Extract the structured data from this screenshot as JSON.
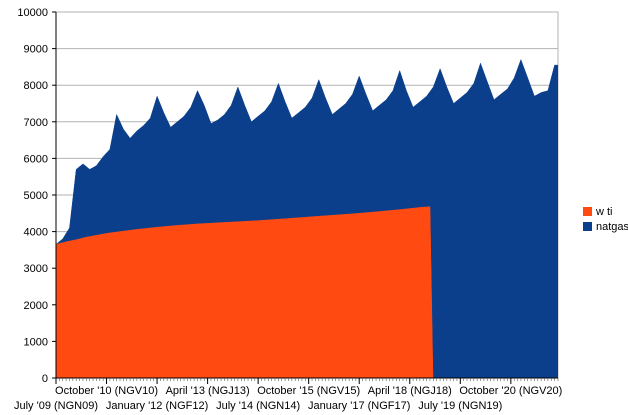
{
  "chart_data": {
    "type": "area",
    "title": "",
    "xlabel": "",
    "ylabel": "",
    "ylim": [
      0,
      10000
    ],
    "yticks": [
      0,
      1000,
      2000,
      3000,
      4000,
      5000,
      6000,
      7000,
      8000,
      9000,
      10000
    ],
    "x_tick_labels": [
      {
        "label": "July '09 (NGN09)",
        "x": "2009-07"
      },
      {
        "label": "October '10 (NGV10)",
        "x": "2010-10"
      },
      {
        "label": "January '12 (NGF12)",
        "x": "2012-01"
      },
      {
        "label": "April '13 (NGJ13)",
        "x": "2013-04"
      },
      {
        "label": "July '14 (NGN14)",
        "x": "2014-07"
      },
      {
        "label": "October '15 (NGV15)",
        "x": "2015-10"
      },
      {
        "label": "January '17 (NGF17)",
        "x": "2017-01"
      },
      {
        "label": "April '18 (NGJ18)",
        "x": "2018-04"
      },
      {
        "label": "July '19 (NGN19)",
        "x": "2019-07"
      },
      {
        "label": "October '20 (NGV20)",
        "x": "2020-10"
      }
    ],
    "grid": true,
    "stacked": false,
    "legend": "right",
    "series": [
      {
        "name": "natgas",
        "color": "#0b3f8c",
        "points": [
          [
            "2009-07",
            3650
          ],
          [
            "2009-09",
            3800
          ],
          [
            "2009-11",
            4100
          ],
          [
            "2010-01",
            5700
          ],
          [
            "2010-03",
            5850
          ],
          [
            "2010-05",
            5700
          ],
          [
            "2010-07",
            5800
          ],
          [
            "2010-09",
            6050
          ],
          [
            "2010-11",
            6250
          ],
          [
            "2011-01",
            7200
          ],
          [
            "2011-03",
            6800
          ],
          [
            "2011-05",
            6550
          ],
          [
            "2011-07",
            6750
          ],
          [
            "2011-09",
            6900
          ],
          [
            "2011-11",
            7100
          ],
          [
            "2012-01",
            7700
          ],
          [
            "2012-03",
            7250
          ],
          [
            "2012-05",
            6850
          ],
          [
            "2012-07",
            7000
          ],
          [
            "2012-09",
            7150
          ],
          [
            "2012-11",
            7400
          ],
          [
            "2013-01",
            7850
          ],
          [
            "2013-03",
            7450
          ],
          [
            "2013-05",
            6950
          ],
          [
            "2013-07",
            7050
          ],
          [
            "2013-09",
            7200
          ],
          [
            "2013-11",
            7450
          ],
          [
            "2014-01",
            7950
          ],
          [
            "2014-03",
            7450
          ],
          [
            "2014-05",
            7000
          ],
          [
            "2014-07",
            7150
          ],
          [
            "2014-09",
            7300
          ],
          [
            "2014-11",
            7550
          ],
          [
            "2015-01",
            8050
          ],
          [
            "2015-03",
            7550
          ],
          [
            "2015-05",
            7100
          ],
          [
            "2015-07",
            7250
          ],
          [
            "2015-09",
            7400
          ],
          [
            "2015-11",
            7650
          ],
          [
            "2016-01",
            8150
          ],
          [
            "2016-03",
            7650
          ],
          [
            "2016-05",
            7200
          ],
          [
            "2016-07",
            7350
          ],
          [
            "2016-09",
            7500
          ],
          [
            "2016-11",
            7750
          ],
          [
            "2017-01",
            8250
          ],
          [
            "2017-03",
            7750
          ],
          [
            "2017-05",
            7300
          ],
          [
            "2017-07",
            7450
          ],
          [
            "2017-09",
            7600
          ],
          [
            "2017-11",
            7850
          ],
          [
            "2018-01",
            8400
          ],
          [
            "2018-03",
            7850
          ],
          [
            "2018-05",
            7400
          ],
          [
            "2018-07",
            7550
          ],
          [
            "2018-09",
            7700
          ],
          [
            "2018-11",
            7950
          ],
          [
            "2019-01",
            8450
          ],
          [
            "2019-03",
            7950
          ],
          [
            "2019-05",
            7500
          ],
          [
            "2019-07",
            7650
          ],
          [
            "2019-09",
            7800
          ],
          [
            "2019-11",
            8050
          ],
          [
            "2020-01",
            8600
          ],
          [
            "2020-03",
            8100
          ],
          [
            "2020-05",
            7600
          ],
          [
            "2020-07",
            7750
          ],
          [
            "2020-09",
            7900
          ],
          [
            "2020-11",
            8200
          ],
          [
            "2021-01",
            8700
          ],
          [
            "2021-03",
            8200
          ],
          [
            "2021-05",
            7700
          ],
          [
            "2021-07",
            7800
          ],
          [
            "2021-09",
            7850
          ],
          [
            "2021-11",
            8550
          ]
        ]
      },
      {
        "name": "w ti",
        "color": "#ff4a12",
        "points": [
          [
            "2009-07",
            3650
          ],
          [
            "2009-10",
            3720
          ],
          [
            "2010-01",
            3780
          ],
          [
            "2010-04",
            3850
          ],
          [
            "2010-07",
            3900
          ],
          [
            "2010-10",
            3950
          ],
          [
            "2011-01",
            3990
          ],
          [
            "2011-07",
            4060
          ],
          [
            "2012-01",
            4120
          ],
          [
            "2012-07",
            4170
          ],
          [
            "2013-01",
            4210
          ],
          [
            "2013-07",
            4240
          ],
          [
            "2014-01",
            4270
          ],
          [
            "2014-07",
            4300
          ],
          [
            "2015-01",
            4340
          ],
          [
            "2015-07",
            4380
          ],
          [
            "2016-01",
            4420
          ],
          [
            "2016-07",
            4460
          ],
          [
            "2017-01",
            4500
          ],
          [
            "2017-07",
            4550
          ],
          [
            "2018-01",
            4600
          ],
          [
            "2018-05",
            4640
          ],
          [
            "2018-07",
            4660
          ],
          [
            "2018-10",
            4680
          ]
        ]
      }
    ]
  }
}
